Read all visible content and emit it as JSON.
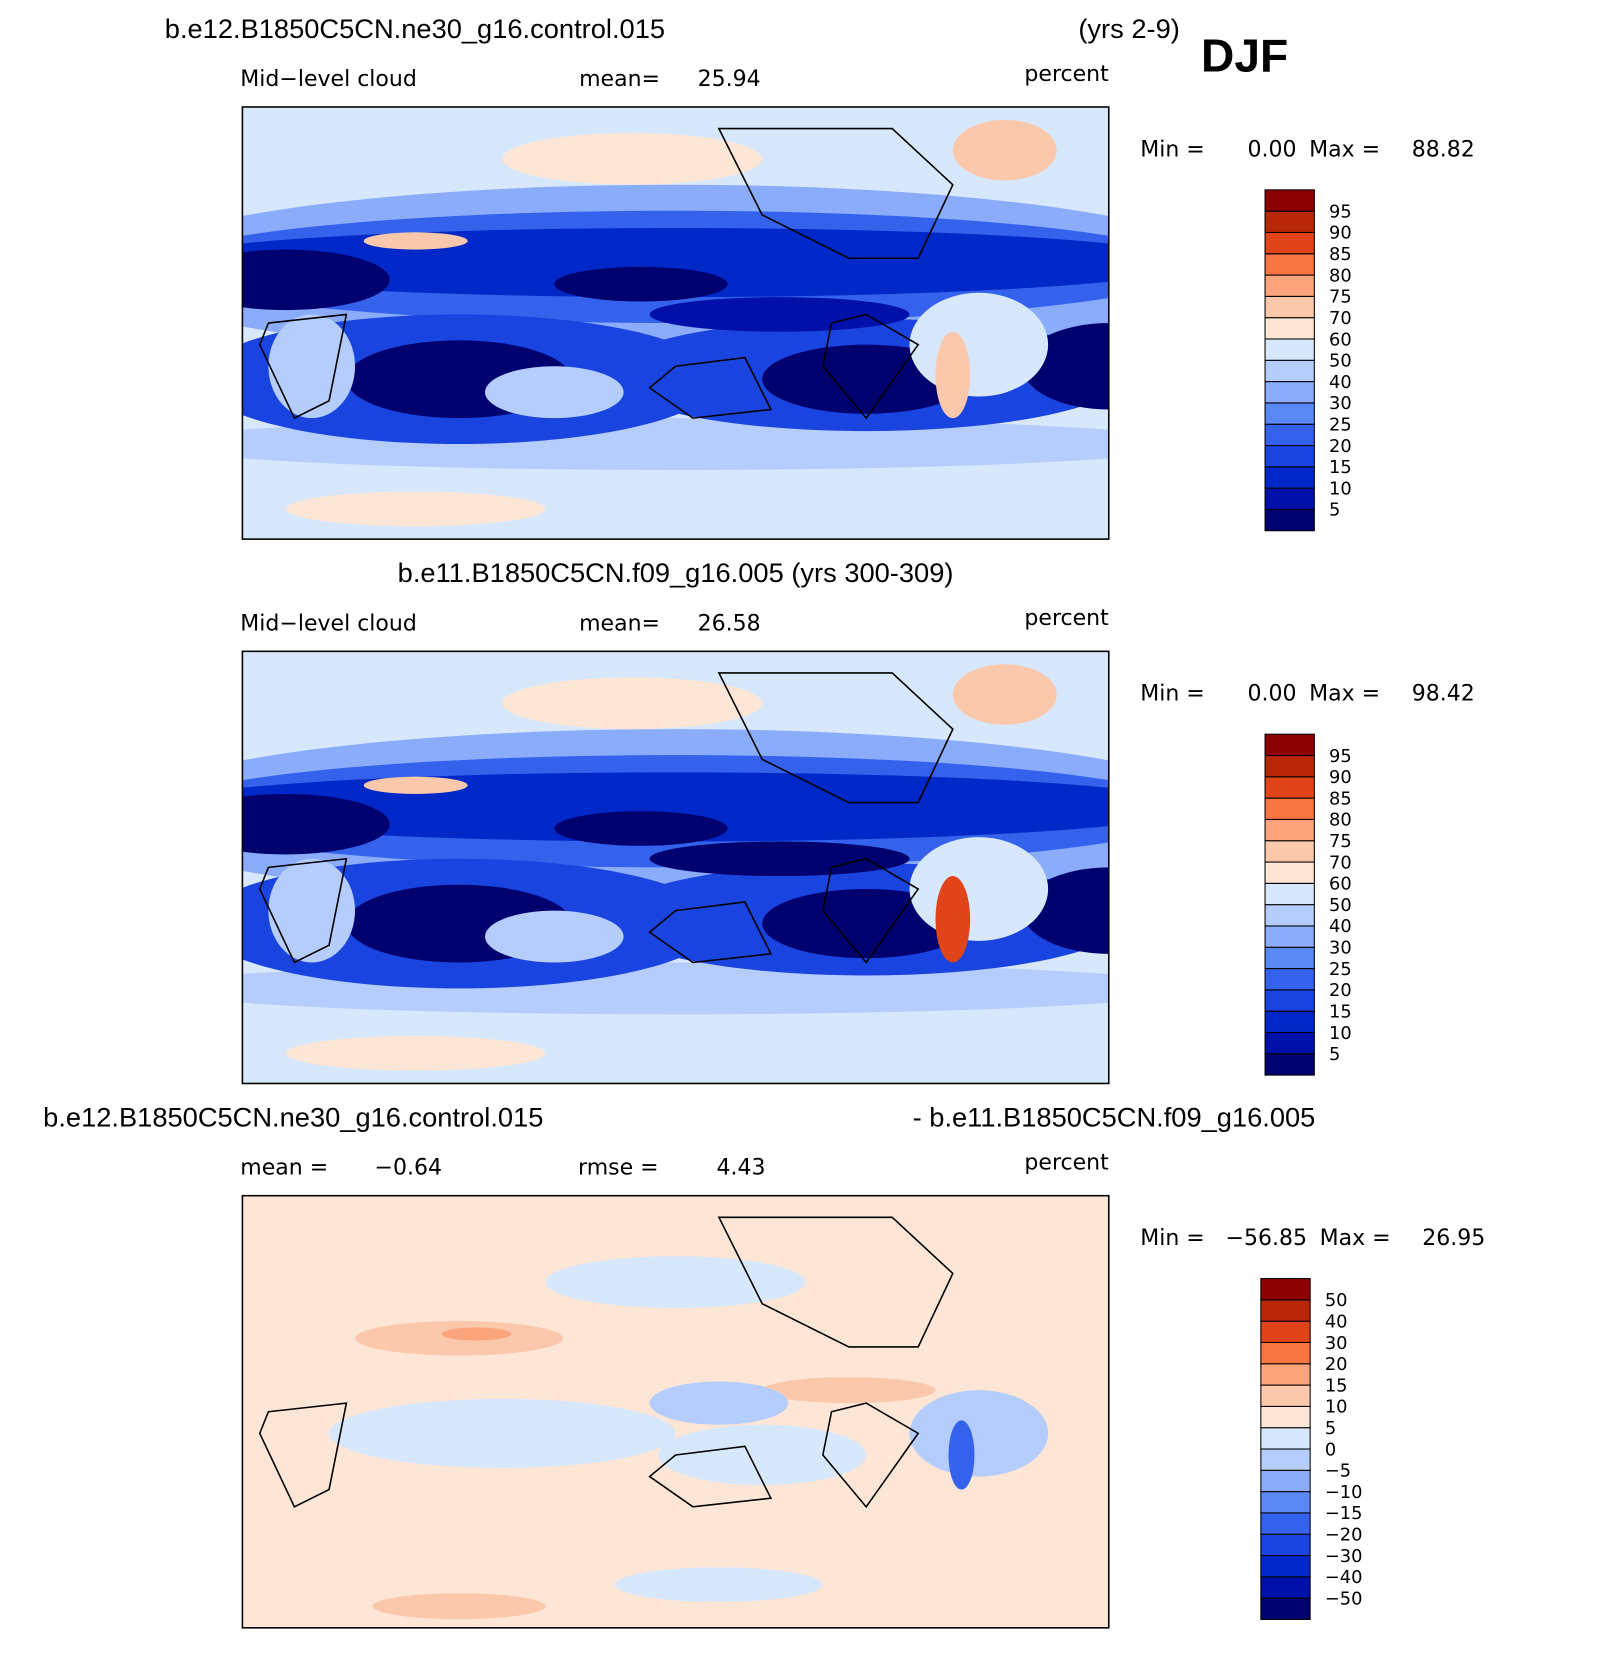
{
  "header": {
    "title_left": "b.e12.B1850C5CN.ne30_g16.control.015",
    "title_right": "(yrs 2-9)",
    "season": "DJF"
  },
  "panels": [
    {
      "field": "Mid−level cloud",
      "mean_label": "mean=",
      "mean": "25.94",
      "units": "percent",
      "min_label": "Min =",
      "min": "0.00",
      "max_label": "Max =",
      "max": "88.82",
      "colorbar": [
        "5",
        "10",
        "15",
        "20",
        "25",
        "30",
        "40",
        "50",
        "60",
        "70",
        "75",
        "80",
        "85",
        "90",
        "95"
      ]
    },
    {
      "title": "b.e11.B1850C5CN.f09_g16.005 (yrs 300-309)",
      "field": "Mid−level cloud",
      "mean_label": "mean=",
      "mean": "26.58",
      "units": "percent",
      "min_label": "Min =",
      "min": "0.00",
      "max_label": "Max =",
      "max": "98.42",
      "colorbar": [
        "5",
        "10",
        "15",
        "20",
        "25",
        "30",
        "40",
        "50",
        "60",
        "70",
        "75",
        "80",
        "85",
        "90",
        "95"
      ]
    },
    {
      "title_left": "b.e12.B1850C5CN.ne30_g16.control.015",
      "title_right": "- b.e11.B1850C5CN.f09_g16.005",
      "mean_label": "mean =",
      "mean": "−0.64",
      "rmse_label": "rmse =",
      "rmse": "4.43",
      "units": "percent",
      "min_label": "Min =",
      "min": "−56.85",
      "max_label": "Max =",
      "max": "26.95",
      "colorbar": [
        "−50",
        "−40",
        "−30",
        "−20",
        "−15",
        "−10",
        "−5",
        "0",
        "5",
        "10",
        "15",
        "20",
        "30",
        "40",
        "50"
      ]
    }
  ]
}
